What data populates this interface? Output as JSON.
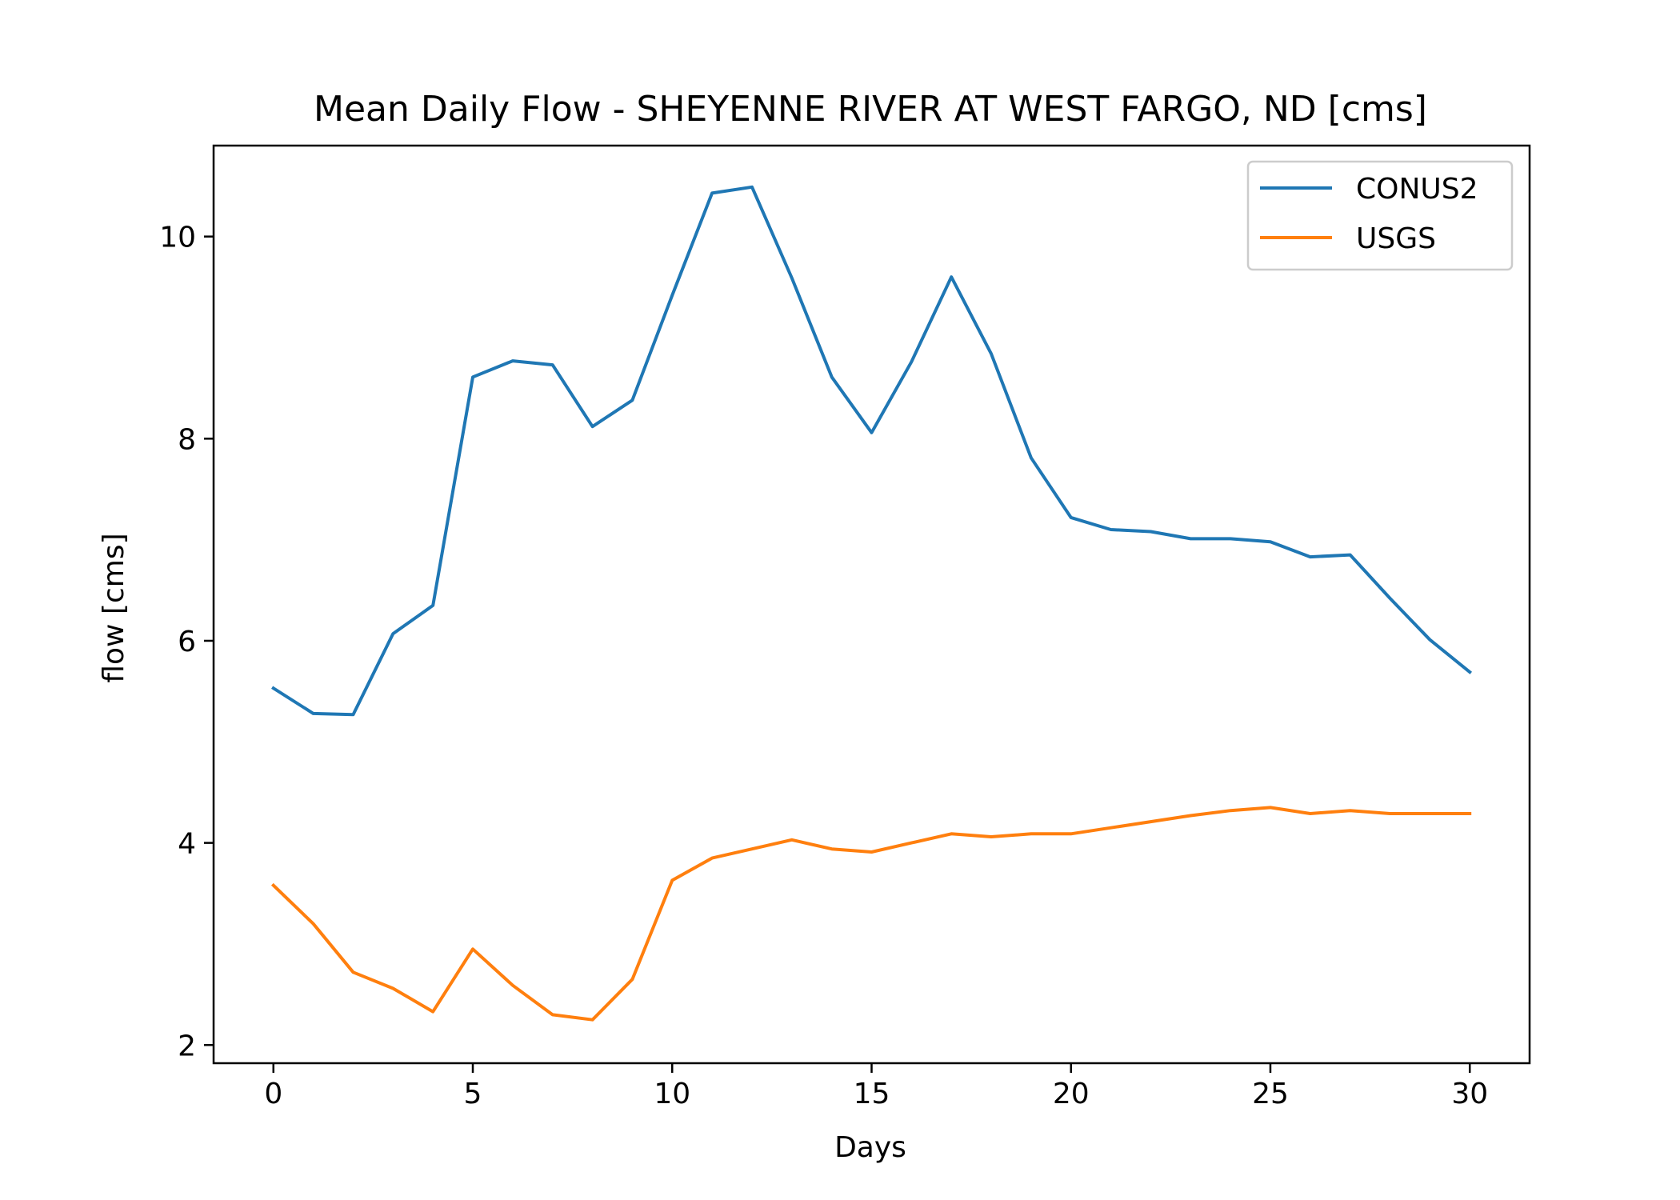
{
  "chart_data": {
    "type": "line",
    "title": "Mean Daily Flow - SHEYENNE RIVER AT WEST FARGO, ND [cms]",
    "xlabel": "Days",
    "ylabel": "flow [cms]",
    "xlim": [
      -1.5,
      31.5
    ],
    "ylim": [
      1.82,
      10.9
    ],
    "xticks": [
      0,
      5,
      10,
      15,
      20,
      25,
      30
    ],
    "yticks": [
      2,
      4,
      6,
      8,
      10
    ],
    "xtick_labels": [
      "0",
      "5",
      "10",
      "15",
      "20",
      "25",
      "30"
    ],
    "ytick_labels": [
      "2",
      "4",
      "6",
      "8",
      "10"
    ],
    "grid": false,
    "legend_position": "upper right",
    "x": [
      0,
      1,
      2,
      3,
      4,
      5,
      6,
      7,
      8,
      9,
      10,
      11,
      12,
      13,
      14,
      15,
      16,
      17,
      18,
      19,
      20,
      21,
      22,
      23,
      24,
      25,
      26,
      27,
      28,
      29,
      30
    ],
    "series": [
      {
        "name": "CONUS2",
        "color": "#1f77b4",
        "values": [
          5.53,
          5.28,
          5.27,
          6.07,
          6.35,
          8.61,
          8.77,
          8.73,
          8.12,
          8.38,
          9.42,
          10.43,
          10.49,
          9.59,
          8.61,
          8.06,
          8.76,
          9.6,
          8.84,
          7.81,
          7.22,
          7.1,
          7.08,
          7.01,
          7.01,
          6.98,
          6.83,
          6.85,
          6.42,
          6.01,
          5.69
        ]
      },
      {
        "name": "USGS",
        "color": "#ff7f0e",
        "values": [
          3.58,
          3.2,
          2.72,
          2.56,
          2.33,
          2.95,
          2.59,
          2.3,
          2.25,
          2.65,
          3.63,
          3.85,
          3.94,
          4.03,
          3.94,
          3.91,
          4.0,
          4.09,
          4.06,
          4.09,
          4.09,
          4.15,
          4.21,
          4.27,
          4.32,
          4.35,
          4.29,
          4.32,
          4.29,
          4.29,
          4.29
        ]
      }
    ]
  }
}
